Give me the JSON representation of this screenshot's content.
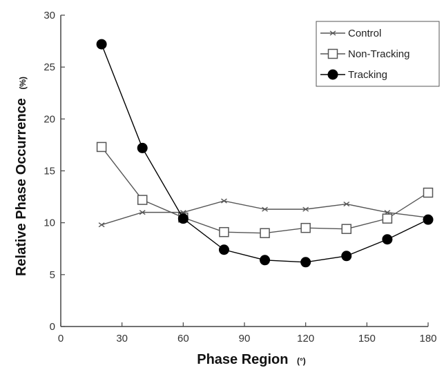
{
  "chart_data": {
    "type": "line",
    "title": "",
    "xlabel": "Phase Region",
    "xlabel_unit": "(°)",
    "ylabel": "Relative Phase Occurrence",
    "ylabel_unit": "(%)",
    "xlim": [
      0,
      180
    ],
    "ylim": [
      0,
      30
    ],
    "xticks": [
      "0",
      "30",
      "60",
      "90",
      "120",
      "150",
      "180"
    ],
    "yticks": [
      "0",
      "5",
      "10",
      "15",
      "20",
      "25",
      "30"
    ],
    "grid": false,
    "legend_position": "top-right",
    "x": [
      20,
      40,
      60,
      80,
      100,
      120,
      140,
      160,
      180
    ],
    "series": [
      {
        "name": "Control",
        "marker": "x",
        "color": "#555555",
        "values": [
          9.8,
          11.0,
          11.0,
          12.1,
          11.3,
          11.3,
          11.8,
          11.0,
          10.5
        ]
      },
      {
        "name": "Non-Tracking",
        "marker": "open-square",
        "color": "#555555",
        "values": [
          17.3,
          12.2,
          10.5,
          9.1,
          9.0,
          9.5,
          9.4,
          10.4,
          12.9
        ]
      },
      {
        "name": "Tracking",
        "marker": "filled-circle",
        "color": "#000000",
        "values": [
          27.2,
          17.2,
          10.4,
          7.4,
          6.4,
          6.2,
          6.8,
          8.4,
          10.3
        ]
      }
    ]
  }
}
